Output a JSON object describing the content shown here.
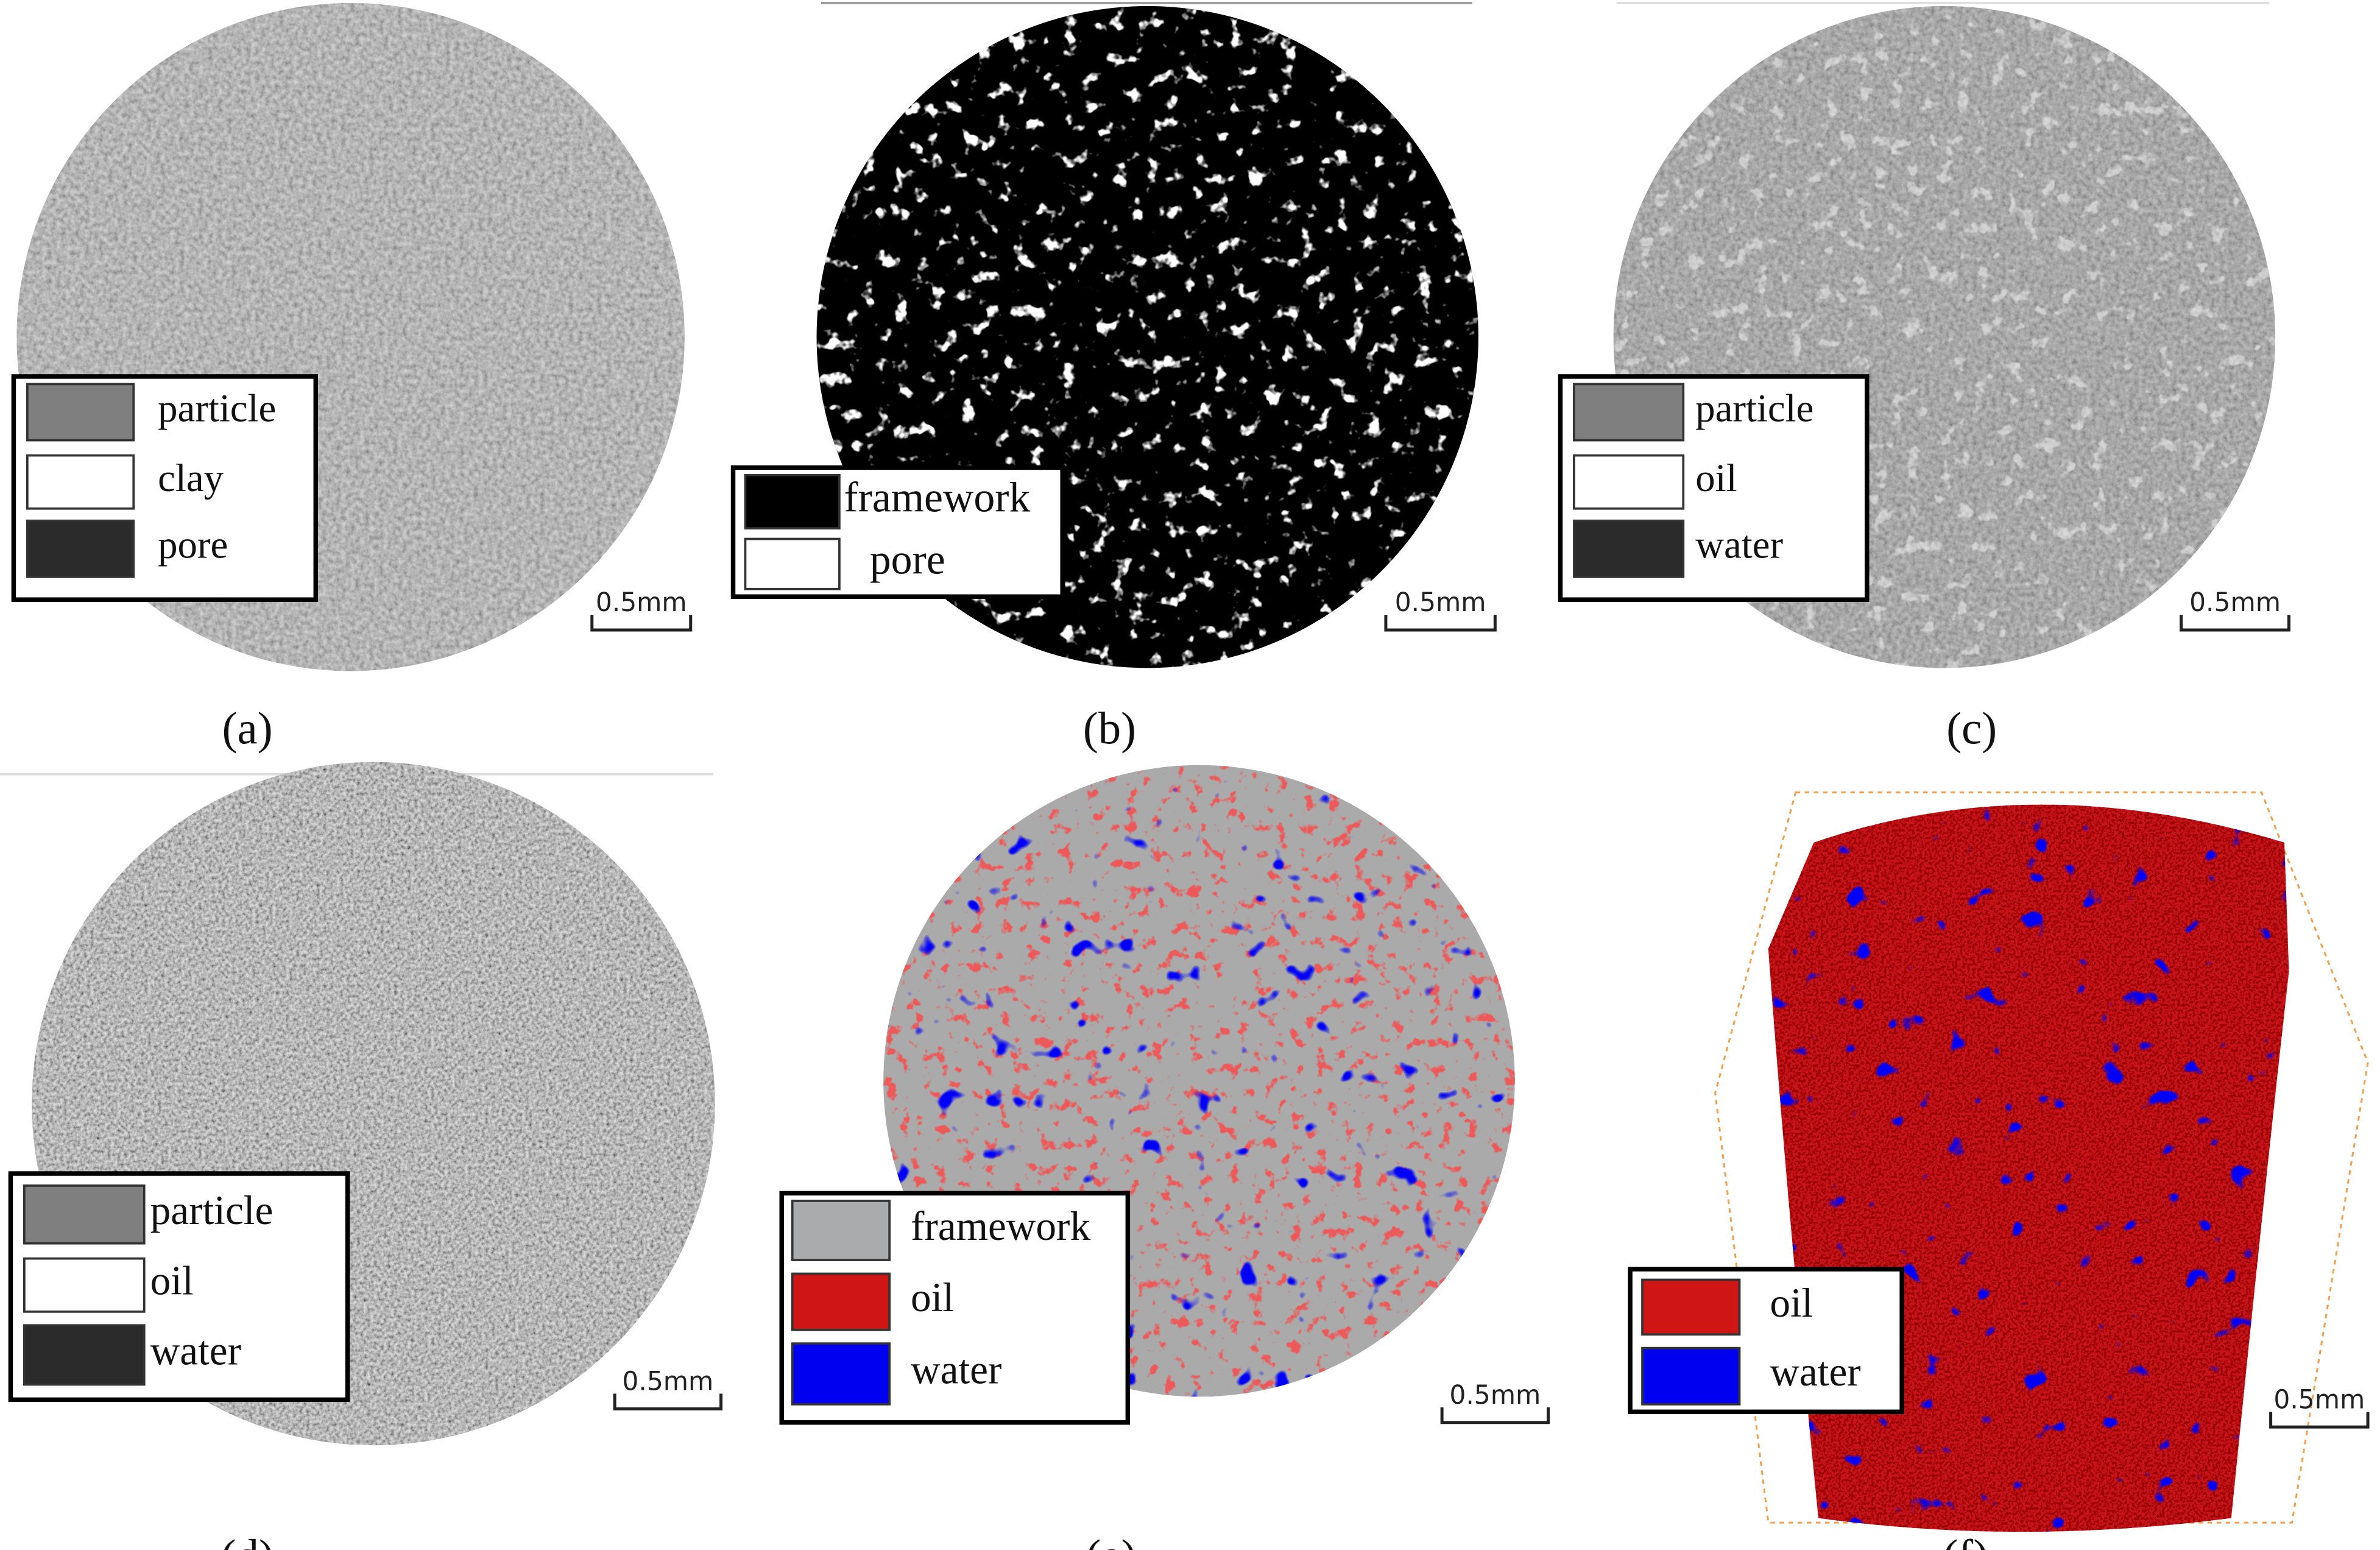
{
  "panels": [
    {
      "caption": "(a)",
      "scale_bar": "0.5mm",
      "legend": [
        {
          "label": "particle",
          "color": "#7f7f7f"
        },
        {
          "label": "clay",
          "color": "#ffffff"
        },
        {
          "label": "pore",
          "color": "#2b2b2b"
        }
      ]
    },
    {
      "caption": "(b)",
      "scale_bar": "0.5mm",
      "legend": [
        {
          "label": "framework",
          "color": "#000000"
        },
        {
          "label": "pore",
          "color": "#ffffff"
        }
      ]
    },
    {
      "caption": "(c)",
      "scale_bar": "0.5mm",
      "legend": [
        {
          "label": "particle",
          "color": "#7f7f7f"
        },
        {
          "label": "oil",
          "color": "#ffffff"
        },
        {
          "label": "water",
          "color": "#2b2b2b"
        }
      ]
    },
    {
      "caption": "(d)",
      "scale_bar": "0.5mm",
      "legend": [
        {
          "label": "particle",
          "color": "#7f7f7f"
        },
        {
          "label": "oil",
          "color": "#ffffff"
        },
        {
          "label": "water",
          "color": "#2b2b2b"
        }
      ]
    },
    {
      "caption": "(e)",
      "scale_bar": "0.5mm",
      "legend": [
        {
          "label": "framework",
          "color": "#a9abad"
        },
        {
          "label": "oil",
          "color": "#d01515"
        },
        {
          "label": "water",
          "color": "#0000f0"
        }
      ]
    },
    {
      "caption": "(f)",
      "scale_bar": "0.5mm",
      "legend": [
        {
          "label": "oil",
          "color": "#d01515"
        },
        {
          "label": "water",
          "color": "#0000f0"
        }
      ]
    }
  ]
}
